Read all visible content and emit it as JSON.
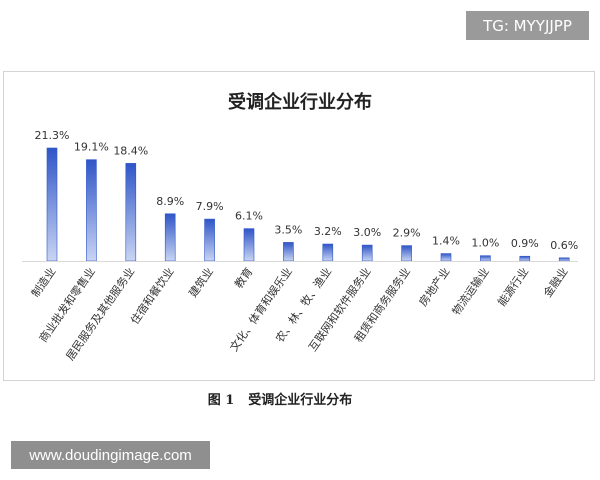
{
  "watermark_top": "TG: MYYJJPP",
  "watermark_bottom": "www.doudingimage.com",
  "caption": {
    "number": "图 1",
    "text": "受调企业行业分布"
  },
  "colors": {
    "bar_top": "#2f55c7",
    "bar_bottom": "#c9d5f3",
    "label": "#333333",
    "axis": "#d9d9d9"
  },
  "chart_data": {
    "type": "bar",
    "title": "受调企业行业分布",
    "categories": [
      "制造业",
      "商业批发和零售业",
      "居民服务及其他服务业",
      "住宿和餐饮业",
      "建筑业",
      "教育",
      "文化、体育和娱乐业",
      "农、林、牧、渔业",
      "互联网和软件服务业",
      "租赁和商务服务业",
      "房地产业",
      "物流运输业",
      "能源行业",
      "金融业"
    ],
    "values": [
      21.3,
      19.1,
      18.4,
      8.9,
      7.9,
      6.1,
      3.5,
      3.2,
      3.0,
      2.9,
      1.4,
      1.0,
      0.9,
      0.6
    ],
    "value_labels": [
      "21.3%",
      "19.1%",
      "18.4%",
      "8.9%",
      "7.9%",
      "6.1%",
      "3.5%",
      "3.2%",
      "3.0%",
      "2.9%",
      "1.4%",
      "1.0%",
      "0.9%",
      "0.6%"
    ],
    "xlabel": "",
    "ylabel": "",
    "ylim": [
      0,
      21.3
    ],
    "grid": false,
    "legend": "none"
  }
}
